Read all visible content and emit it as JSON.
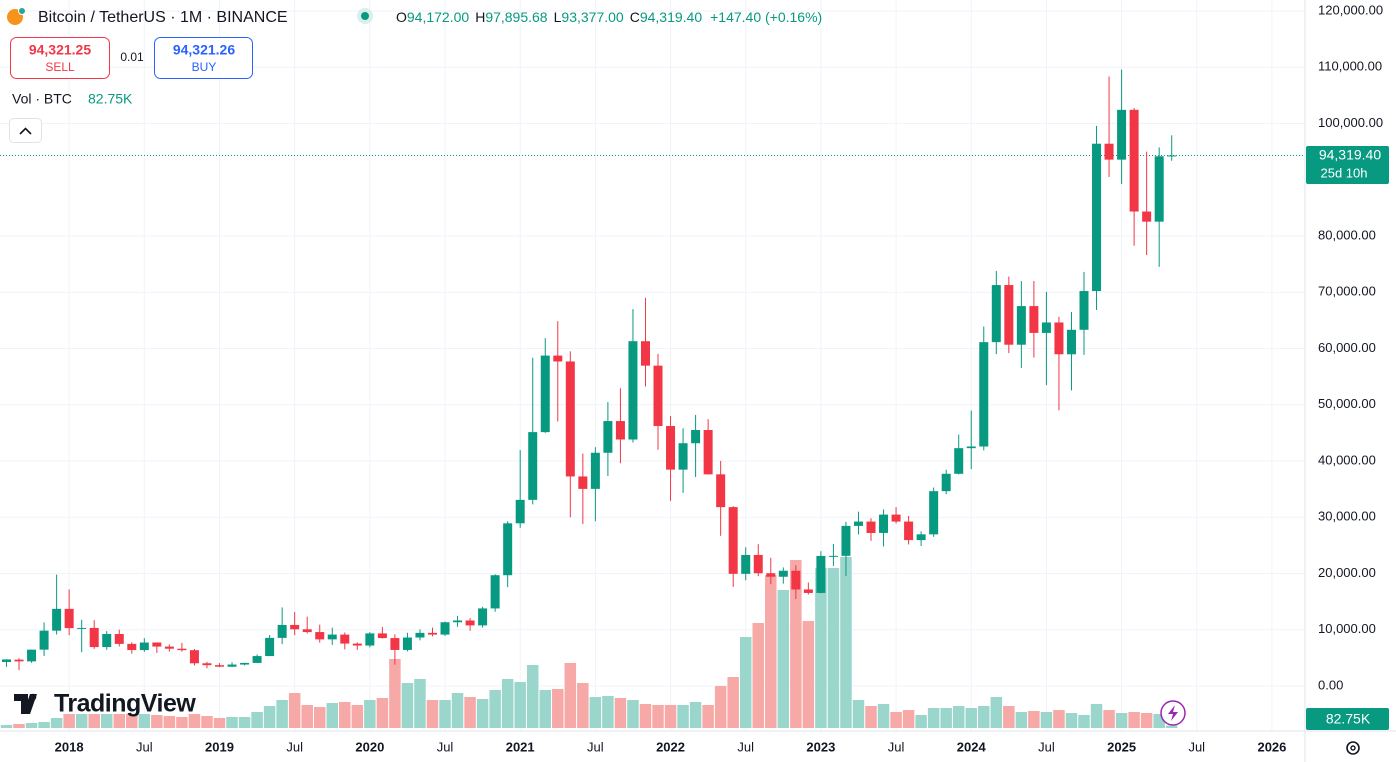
{
  "header": {
    "title": "Bitcoin / TetherUS · 1M · BINANCE",
    "open_key": "O",
    "open": "94,172.00",
    "high_key": "H",
    "high": "97,895.68",
    "low_key": "L",
    "low": "93,377.00",
    "close_key": "C",
    "close": "94,319.40",
    "change": "+147.40 (+0.16%)",
    "sell_price": "94,321.25",
    "sell": "SELL",
    "spread": "0.01",
    "buy_price": "94,321.26",
    "buy": "BUY",
    "volume_title": "Vol · BTC",
    "volume_value": "82.75K",
    "watermark": "TradingView"
  },
  "chart_data": {
    "type": "candlestick",
    "up_color": "#089981",
    "down_color": "#f23645",
    "volume_up_color": "#9bd6cd",
    "volume_down_color": "#f7a9a7",
    "grid": true,
    "x": [
      "2017-08",
      "2017-09",
      "2017-10",
      "2017-11",
      "2017-12",
      "2018-01",
      "2018-02",
      "2018-03",
      "2018-04",
      "2018-05",
      "2018-06",
      "2018-07",
      "2018-08",
      "2018-09",
      "2018-10",
      "2018-11",
      "2018-12",
      "2019-01",
      "2019-02",
      "2019-03",
      "2019-04",
      "2019-05",
      "2019-06",
      "2019-07",
      "2019-08",
      "2019-09",
      "2019-10",
      "2019-11",
      "2019-12",
      "2020-01",
      "2020-02",
      "2020-03",
      "2020-04",
      "2020-05",
      "2020-06",
      "2020-07",
      "2020-08",
      "2020-09",
      "2020-10",
      "2020-11",
      "2020-12",
      "2021-01",
      "2021-02",
      "2021-03",
      "2021-04",
      "2021-05",
      "2021-06",
      "2021-07",
      "2021-08",
      "2021-09",
      "2021-10",
      "2021-11",
      "2021-12",
      "2022-01",
      "2022-02",
      "2022-03",
      "2022-04",
      "2022-05",
      "2022-06",
      "2022-07",
      "2022-08",
      "2022-09",
      "2022-10",
      "2022-11",
      "2022-12",
      "2023-01",
      "2023-02",
      "2023-03",
      "2023-04",
      "2023-05",
      "2023-06",
      "2023-07",
      "2023-08",
      "2023-09",
      "2023-10",
      "2023-11",
      "2023-12",
      "2024-01",
      "2024-02",
      "2024-03",
      "2024-04",
      "2024-05",
      "2024-06",
      "2024-07",
      "2024-08",
      "2024-09",
      "2024-10",
      "2024-11",
      "2024-12",
      "2025-01",
      "2025-02",
      "2025-03",
      "2025-04",
      "2025-05"
    ],
    "open": [
      4261,
      4689,
      4378,
      6463,
      9837,
      13715,
      10285,
      10325,
      6923,
      9246,
      7485,
      6391,
      7730,
      7011,
      6626,
      6370,
      4041,
      3702,
      3434,
      3814,
      4102,
      5321,
      8555,
      10854,
      10085,
      9588,
      8289,
      9140,
      7540,
      7195,
      9352,
      8523,
      6412,
      8620,
      9448,
      9138,
      11335,
      11650,
      10776,
      13791,
      19695,
      28923,
      33092,
      45134,
      58739,
      57697,
      37254,
      35045,
      41461,
      47100,
      43820,
      61300,
      56950,
      46216,
      38466,
      43160,
      45510,
      37630,
      31801,
      19942,
      23296,
      20049,
      19422,
      20490,
      17165,
      16542,
      23125,
      23141,
      28465,
      29233,
      27211,
      30472,
      29232,
      25941,
      26962,
      34640,
      37724,
      42283,
      42580,
      61131,
      71280,
      60672,
      67540,
      62772,
      64628,
      58974,
      63327,
      70216,
      96407,
      93576,
      102429,
      84350,
      82550,
      94172
    ],
    "high": [
      4745,
      4939,
      6470,
      11300,
      19798,
      17176,
      11786,
      11710,
      9759,
      10020,
      7786,
      8506,
      7750,
      7410,
      7680,
      6588,
      4313,
      4069,
      4210,
      4140,
      5600,
      9074,
      13970,
      13147,
      12325,
      10905,
      10370,
      9513,
      7750,
      9578,
      10500,
      9188,
      9460,
      10068,
      10380,
      11444,
      12468,
      12067,
      14100,
      19863,
      29300,
      41950,
      58352,
      61844,
      64854,
      59500,
      41330,
      42448,
      50500,
      52920,
      67000,
      69000,
      59053,
      47990,
      45821,
      48189,
      47444,
      40023,
      31982,
      24668,
      25211,
      22799,
      21085,
      21480,
      18387,
      23960,
      25250,
      29184,
      31000,
      29820,
      31390,
      31804,
      30226,
      27488,
      35280,
      38450,
      44700,
      48970,
      63913,
      73777,
      72797,
      71979,
      71997,
      70079,
      65659,
      66498,
      73620,
      99588,
      108353,
      109588,
      102750,
      95000,
      95758,
      97895.68
    ],
    "low": [
      3400,
      2817,
      4110,
      5325,
      9150,
      9035,
      6000,
      6600,
      6430,
      7032,
      5755,
      6070,
      5880,
      6111,
      6100,
      3652,
      3156,
      3349,
      3374,
      3670,
      4067,
      5316,
      7444,
      9036,
      9320,
      7710,
      7300,
      6515,
      6435,
      6871,
      8445,
      3782,
      6150,
      8117,
      8833,
      8893,
      10525,
      9825,
      10374,
      13195,
      17572,
      28130,
      32296,
      45000,
      47044,
      30000,
      28805,
      29278,
      37332,
      39600,
      43283,
      53256,
      42000,
      32917,
      34322,
      37155,
      37578,
      26700,
      17622,
      18781,
      19520,
      18125,
      18190,
      15476,
      16256,
      16499,
      21351,
      19549,
      26942,
      25811,
      24800,
      28861,
      25166,
      24901,
      26521,
      34097,
      37615,
      38555,
      41884,
      59005,
      59191,
      56552,
      58402,
      53485,
      49000,
      52550,
      58864,
      66835,
      90500,
      89256,
      78258,
      76606,
      74508,
      93377
    ],
    "close": [
      4724,
      4378,
      6463,
      9838,
      13716,
      10285,
      10326,
      6923,
      9246,
      7485,
      6391,
      7731,
      7011,
      6626,
      6371,
      4041,
      3702,
      3434,
      3813,
      4103,
      5321,
      8555,
      10854,
      10085,
      9588,
      8289,
      9140,
      7541,
      7195,
      9352,
      8523,
      6410,
      8620,
      9448,
      9138,
      11335,
      11650,
      10776,
      13791,
      19695,
      28923,
      33092,
      45135,
      58740,
      57694,
      37253,
      35045,
      41462,
      47100,
      43824,
      61300,
      56950,
      46216,
      38466,
      43160,
      45510,
      37630,
      31801,
      19942,
      23293,
      20050,
      19423,
      20490,
      17164,
      16542,
      23125,
      23141,
      28465,
      29233,
      27210,
      30472,
      29232,
      25941,
      26962,
      34639,
      37723,
      42283,
      42580,
      61130,
      71280,
      60672,
      67540,
      62772,
      64628,
      58974,
      63327,
      70215,
      96407,
      93576,
      102429,
      84350,
      82550,
      94172,
      94319.4
    ],
    "volume": [
      102000,
      136000,
      170000,
      204000,
      340000,
      476000,
      476000,
      476000,
      476000,
      476000,
      476000,
      476000,
      442000,
      408000,
      374000,
      476000,
      408000,
      340000,
      374000,
      374000,
      544000,
      748000,
      952000,
      1190000,
      782000,
      714000,
      850000,
      884000,
      782000,
      952000,
      1020000,
      2346000,
      1530000,
      1666000,
      952000,
      952000,
      1190000,
      1054000,
      986000,
      1292000,
      1666000,
      1564000,
      2142000,
      1292000,
      1326000,
      2210000,
      1530000,
      1054000,
      1088000,
      1020000,
      952000,
      816000,
      782000,
      782000,
      782000,
      884000,
      782000,
      1428000,
      1734000,
      3094000,
      3570000,
      5202000,
      4692000,
      5712000,
      3638000,
      5440000,
      5440000,
      5814000,
      952000,
      748000,
      816000,
      544000,
      612000,
      442000,
      680000,
      680000,
      748000,
      680000,
      748000,
      1054000,
      748000,
      544000,
      578000,
      544000,
      612000,
      510000,
      442000,
      816000,
      612000,
      510000,
      544000,
      510000,
      476000,
      82750
    ],
    "last_price_label": "94,319.40",
    "countdown": "25d 10h",
    "ylim": [
      -7822,
      121956
    ],
    "yticks": [
      {
        "value": 0,
        "label": "0.00"
      },
      {
        "value": 10000,
        "label": "10,000.00"
      },
      {
        "value": 20000,
        "label": "20,000.00"
      },
      {
        "value": 30000,
        "label": "30,000.00"
      },
      {
        "value": 40000,
        "label": "40,000.00"
      },
      {
        "value": 50000,
        "label": "50,000.00"
      },
      {
        "value": 60000,
        "label": "60,000.00"
      },
      {
        "value": 70000,
        "label": "70,000.00"
      },
      {
        "value": 80000,
        "label": "80,000.00"
      },
      {
        "value": 100000,
        "label": "100,000.00"
      },
      {
        "value": 110000,
        "label": "110,000.00"
      },
      {
        "value": 120000,
        "label": "120,000.00"
      }
    ],
    "xlim": [
      "2017-08",
      "2026-03"
    ],
    "xticks": [
      {
        "value": "2018-01",
        "label": "2018"
      },
      {
        "value": "2018-07",
        "label": "Jul"
      },
      {
        "value": "2019-01",
        "label": "2019"
      },
      {
        "value": "2019-07",
        "label": "Jul"
      },
      {
        "value": "2020-01",
        "label": "2020"
      },
      {
        "value": "2020-07",
        "label": "Jul"
      },
      {
        "value": "2021-01",
        "label": "2021"
      },
      {
        "value": "2021-07",
        "label": "Jul"
      },
      {
        "value": "2022-01",
        "label": "2022"
      },
      {
        "value": "2022-07",
        "label": "Jul"
      },
      {
        "value": "2023-01",
        "label": "2023"
      },
      {
        "value": "2023-07",
        "label": "Jul"
      },
      {
        "value": "2024-01",
        "label": "2024"
      },
      {
        "value": "2024-07",
        "label": "Jul"
      },
      {
        "value": "2025-01",
        "label": "2025"
      },
      {
        "value": "2025-07",
        "label": "Jul"
      },
      {
        "value": "2026-01",
        "label": "2026"
      }
    ]
  }
}
